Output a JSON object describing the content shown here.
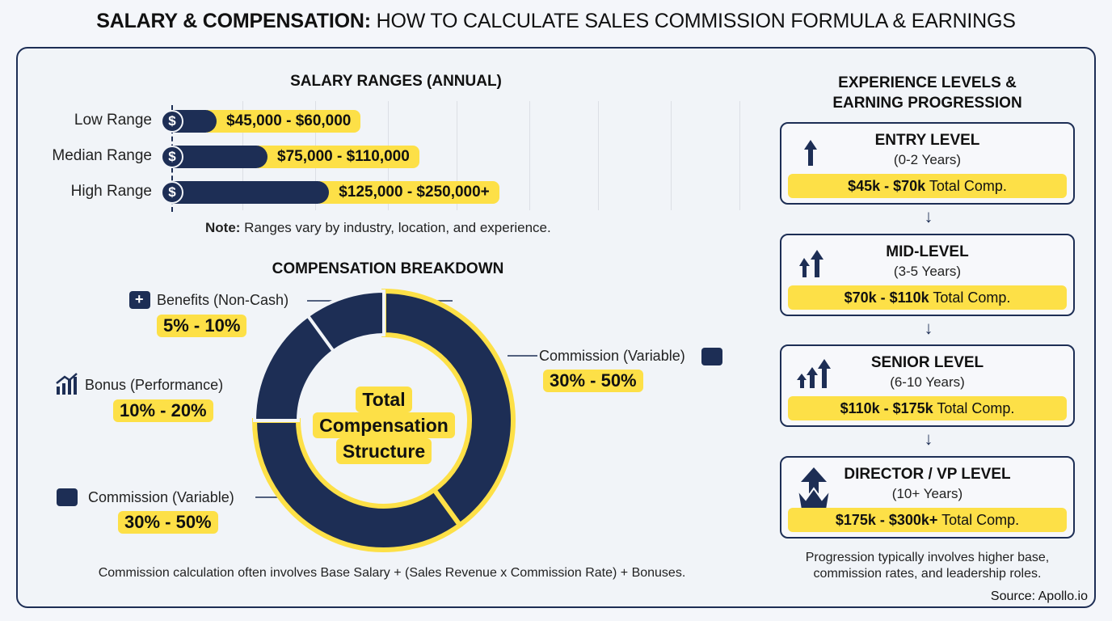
{
  "title": "SALARY & COMPENSATION: HOW TO CALCULATE SALES COMMISSION FORMULA & EARNINGS",
  "title_bold": "SALARY & COMPENSATION:",
  "title_rest": " HOW TO CALCULATE SALES COMMISSION FORMULA & EARNINGS",
  "salary": {
    "heading": "SALARY RANGES (ANNUAL)",
    "note_bold": "Note:",
    "note": " Ranges vary by industry, location, and experience.",
    "icon": "dollar-icon"
  },
  "breakdown": {
    "heading": "COMPENSATION BREAKDOWN",
    "center": [
      "Total",
      "Compensation",
      "Structure"
    ],
    "footer": "Commission calculation often involves Base Salary + (Sales Revenue x Commission Rate) + Bonuses."
  },
  "experience": {
    "heading": [
      "EXPERIENCE LEVELS &",
      "EARNING PROGRESSION"
    ],
    "levels": [
      {
        "title": "ENTRY LEVEL",
        "years": "(0-2 Years)",
        "range": "$45k - $70k",
        "suffix": " Total Comp.",
        "icon": "arrow-up-icon"
      },
      {
        "title": "MID-LEVEL",
        "years": "(3-5 Years)",
        "range": "$70k - $110k",
        "suffix": " Total Comp.",
        "icon": "two-arrows-up-icon"
      },
      {
        "title": "SENIOR LEVEL",
        "years": "(6-10 Years)",
        "range": "$110k - $175k",
        "suffix": " Total Comp.",
        "icon": "three-arrows-up-icon"
      },
      {
        "title": "DIRECTOR / VP LEVEL",
        "years": "(10+ Years)",
        "range": "$175k - $300k+",
        "suffix": " Total Comp.",
        "icon": "crown-arrow-icon"
      }
    ],
    "footer": [
      "Progression typically involves higher base,",
      "commission rates, and leadership roles."
    ]
  },
  "source": "Source: Apollo.io",
  "colors": {
    "navy": "#1d2e55",
    "yellow": "#fde047",
    "background": "#f1f4f8"
  },
  "chart_data": [
    {
      "type": "bar",
      "orientation": "horizontal",
      "title": "SALARY RANGES (ANNUAL)",
      "categories": [
        "Low Range",
        "Median Range",
        "High Range"
      ],
      "labels": [
        "$45,000 - $60,000",
        "$75,000 - $110,000",
        "$125,000 - $250,000+"
      ],
      "ranges": [
        [
          45000,
          60000
        ],
        [
          75000,
          110000
        ],
        [
          125000,
          250000
        ]
      ],
      "grid": true
    },
    {
      "type": "pie",
      "variant": "donut",
      "title": "COMPENSATION BREAKDOWN",
      "slices": [
        {
          "label": "Commission (Variable)",
          "range": "30% - 50%",
          "share": 40,
          "icon": "briefcase-icon",
          "highlight": true
        },
        {
          "label": "Commission (Variable)",
          "range": "30% - 50%",
          "share": 35,
          "icon": "briefcase-icon",
          "highlight": true
        },
        {
          "label": "Bonus (Performance)",
          "range": "10% - 20%",
          "share": 15,
          "icon": "bar-chart-growth-icon",
          "highlight": false
        },
        {
          "label": "Benefits (Non-Cash)",
          "range": "5% - 10%",
          "share": 10,
          "icon": "medical-kit-icon",
          "highlight": false
        }
      ]
    }
  ]
}
